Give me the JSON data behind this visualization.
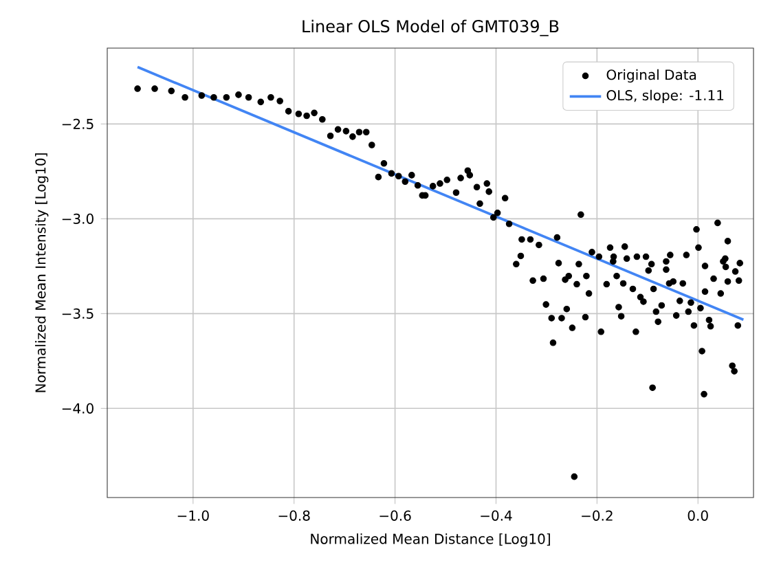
{
  "chart_data": {
    "type": "scatter",
    "title": "Linear OLS Model of GMT039_B",
    "xlabel": "Normalized Mean Distance [Log10]",
    "ylabel": "Normalized Mean Intensity [Log10]",
    "xlim": [
      -1.17,
      0.11
    ],
    "ylim": [
      -4.47,
      -2.1
    ],
    "xticks": [
      {
        "value": -1.0,
        "label": "−1.0"
      },
      {
        "value": -0.8,
        "label": "−0.8"
      },
      {
        "value": -0.6,
        "label": "−0.6"
      },
      {
        "value": -0.4,
        "label": "−0.4"
      },
      {
        "value": -0.2,
        "label": "−0.2"
      },
      {
        "value": 0.0,
        "label": "0.0"
      }
    ],
    "yticks": [
      {
        "value": -2.5,
        "label": "−2.5"
      },
      {
        "value": -3.0,
        "label": "−3.0"
      },
      {
        "value": -3.5,
        "label": "−3.5"
      },
      {
        "value": -4.0,
        "label": "−4.0"
      }
    ],
    "grid": true,
    "legend": "top right",
    "marker": "circle",
    "series": [
      {
        "name": "Original Data",
        "color": "#000000",
        "x": [
          -1.11,
          -1.076,
          -1.043,
          -1.016,
          -0.983,
          -0.959,
          -0.934,
          -0.91,
          -0.89,
          -0.866,
          -0.846,
          -0.828,
          -0.811,
          -0.791,
          -0.775,
          -0.76,
          -0.744,
          -0.728,
          -0.713,
          -0.697,
          -0.684,
          -0.671,
          -0.657,
          -0.646,
          -0.633,
          -0.622,
          -0.607,
          -0.593,
          -0.58,
          -0.567,
          -0.555,
          -0.546,
          -0.54,
          -0.525,
          -0.511,
          -0.497,
          -0.479,
          -0.47,
          -0.456,
          -0.452,
          -0.438,
          -0.432,
          -0.418,
          -0.414,
          -0.405,
          -0.397,
          -0.382,
          -0.374,
          -0.349,
          -0.332,
          -0.315,
          -0.351,
          -0.36,
          -0.279,
          -0.276,
          -0.232,
          -0.236,
          -0.21,
          -0.196,
          -0.174,
          -0.167,
          -0.145,
          -0.141,
          -0.121,
          -0.103,
          -0.092,
          -0.055,
          -0.063,
          -0.023,
          -0.003,
          0.001,
          0.014,
          0.039,
          0.059,
          0.054,
          0.083,
          -0.327,
          -0.306,
          -0.301,
          -0.29,
          -0.287,
          -0.27,
          -0.263,
          -0.26,
          -0.256,
          -0.249,
          -0.245,
          -0.24,
          -0.223,
          -0.221,
          -0.216,
          -0.192,
          -0.181,
          -0.168,
          -0.161,
          -0.157,
          -0.152,
          -0.148,
          -0.129,
          -0.123,
          -0.114,
          -0.108,
          -0.098,
          -0.09,
          -0.088,
          -0.083,
          -0.079,
          -0.072,
          -0.063,
          -0.057,
          -0.049,
          -0.043,
          -0.036,
          -0.03,
          -0.019,
          -0.014,
          -0.008,
          0.005,
          0.008,
          0.012,
          0.014,
          0.022,
          0.025,
          0.031,
          0.045,
          0.05,
          0.055,
          0.059,
          0.068,
          0.072,
          0.074,
          0.079,
          0.081
        ],
        "values": [
          -2.314,
          -2.314,
          -2.326,
          -2.36,
          -2.35,
          -2.36,
          -2.36,
          -2.346,
          -2.36,
          -2.384,
          -2.36,
          -2.379,
          -2.433,
          -2.447,
          -2.457,
          -2.442,
          -2.476,
          -2.563,
          -2.529,
          -2.538,
          -2.567,
          -2.543,
          -2.543,
          -2.611,
          -2.78,
          -2.708,
          -2.761,
          -2.775,
          -2.804,
          -2.77,
          -2.824,
          -2.877,
          -2.877,
          -2.828,
          -2.814,
          -2.795,
          -2.862,
          -2.785,
          -2.746,
          -2.77,
          -2.833,
          -2.92,
          -2.814,
          -2.857,
          -2.993,
          -2.969,
          -2.891,
          -3.027,
          -3.109,
          -3.109,
          -3.138,
          -3.196,
          -3.239,
          -3.099,
          -3.234,
          -2.978,
          -3.239,
          -3.176,
          -3.2,
          -3.152,
          -3.2,
          -3.147,
          -3.21,
          -3.2,
          -3.2,
          -3.239,
          -3.191,
          -3.225,
          -3.191,
          -3.056,
          -3.152,
          -3.249,
          -3.022,
          -3.118,
          -3.21,
          -3.234,
          -3.326,
          -3.316,
          -3.452,
          -3.524,
          -3.654,
          -3.524,
          -3.321,
          -3.476,
          -3.302,
          -3.575,
          -4.36,
          -3.345,
          -3.519,
          -3.302,
          -3.394,
          -3.596,
          -3.345,
          -3.225,
          -3.302,
          -3.466,
          -3.514,
          -3.341,
          -3.37,
          -3.596,
          -3.413,
          -3.437,
          -3.273,
          -3.891,
          -3.37,
          -3.49,
          -3.543,
          -3.457,
          -3.268,
          -3.341,
          -3.331,
          -3.51,
          -3.433,
          -3.341,
          -3.49,
          -3.442,
          -3.563,
          -3.471,
          -3.698,
          -3.925,
          -3.384,
          -3.534,
          -3.567,
          -3.316,
          -3.394,
          -3.225,
          -3.254,
          -3.331,
          -3.775,
          -3.804,
          -3.278,
          -3.563,
          -3.326
        ]
      },
      {
        "name": "OLS, slope: -1.11",
        "type": "line",
        "color": "#4285f4",
        "marker": "none",
        "x": [
          -1.11,
          0.09
        ],
        "values": [
          -2.2,
          -3.532
        ]
      }
    ]
  }
}
